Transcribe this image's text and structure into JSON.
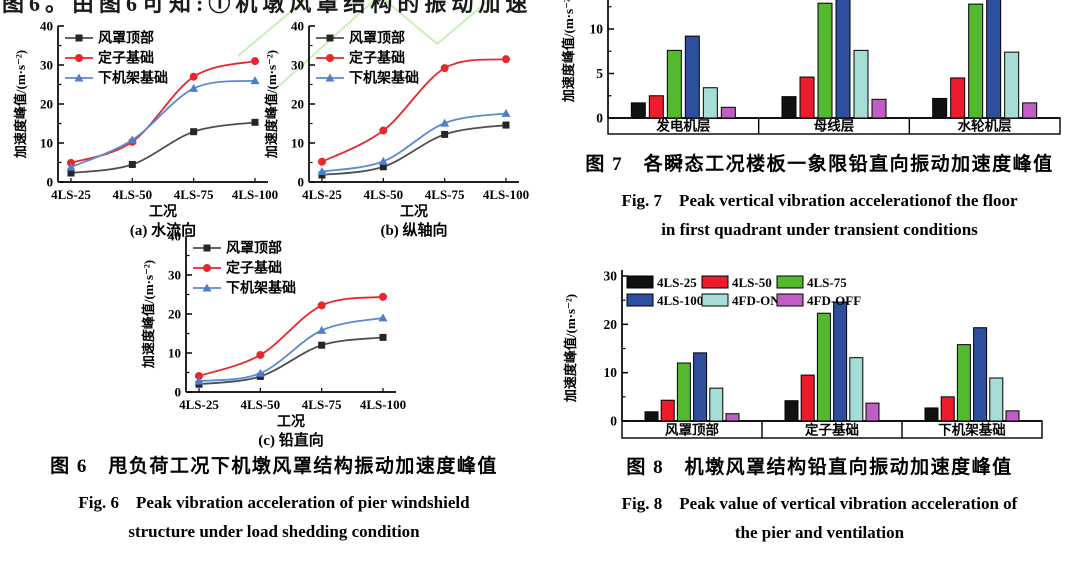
{
  "page_background": "#ffffff",
  "watermark_color": "#7ed957",
  "top_text": {
    "text": "图6。由图6可知:①机墩风罩结构的振动加速"
  },
  "figures": {
    "fig6": {
      "caption_zh": "图 6　甩负荷工况下机墩风罩结构振动加速度峰值",
      "caption_en1": "Fig. 6　Peak vibration acceleration of pier windshield",
      "caption_en2": "structure under load shedding condition"
    },
    "fig7": {
      "caption_zh": "图 7　各瞬态工况楼板一象限铅直向振动加速度峰值",
      "caption_en1": "Fig. 7　Peak vertical vibration accelerationof the floor",
      "caption_en2": "in first quadrant under transient conditions"
    },
    "fig8": {
      "caption_zh": "图 8　机墩风罩结构铅直向振动加速度峰值",
      "caption_en1": "Fig. 8　Peak value of vertical vibration acceleration of",
      "caption_en2": "the pier and ventilation"
    }
  },
  "chart_data": [
    {
      "id": "fig6a",
      "type": "line",
      "subcaption": "(a) 水流向",
      "xlabel": "工况",
      "ylabel": "加速度峰值/(m·s⁻²)",
      "ylim": [
        0,
        40
      ],
      "yticks": [
        0,
        10,
        20,
        30,
        40
      ],
      "yminor": [
        5,
        15,
        25,
        35
      ],
      "categories": [
        "4LS-25",
        "4LS-50",
        "4LS-75",
        "4LS-100"
      ],
      "legend_position": "top-left-inside",
      "series": [
        {
          "name": "风罩顶部",
          "color": "#4e4e4e",
          "marker": "square",
          "marker_color": "#262626",
          "values": [
            2.3,
            4.5,
            12.9,
            15.3
          ]
        },
        {
          "name": "定子基础",
          "color": "#e8272d",
          "marker": "circle",
          "marker_color": "#e8272d",
          "values": [
            4.9,
            10.3,
            27.0,
            31.0
          ]
        },
        {
          "name": "下机架基础",
          "color": "#5b8ad2",
          "marker": "triangle",
          "marker_color": "#4f7fc9",
          "values": [
            3.8,
            10.8,
            24.0,
            26.0
          ]
        }
      ]
    },
    {
      "id": "fig6b",
      "type": "line",
      "subcaption": "(b) 纵轴向",
      "xlabel": "工况",
      "ylabel": "加速度峰值/(m·s⁻²)",
      "ylim": [
        0,
        40
      ],
      "yticks": [
        0,
        10,
        20,
        30,
        40
      ],
      "yminor": [
        5,
        15,
        25,
        35
      ],
      "categories": [
        "4LS-25",
        "4LS-50",
        "4LS-75",
        "4LS-100"
      ],
      "legend_position": "top-left-inside",
      "series": [
        {
          "name": "风罩顶部",
          "color": "#4e4e4e",
          "marker": "square",
          "marker_color": "#262626",
          "values": [
            1.8,
            3.9,
            12.2,
            14.6
          ]
        },
        {
          "name": "定子基础",
          "color": "#e8272d",
          "marker": "circle",
          "marker_color": "#e8272d",
          "values": [
            5.2,
            13.2,
            29.2,
            31.5
          ]
        },
        {
          "name": "下机架基础",
          "color": "#5b8ad2",
          "marker": "triangle",
          "marker_color": "#4f7fc9",
          "values": [
            2.7,
            5.3,
            15.1,
            17.6
          ]
        }
      ]
    },
    {
      "id": "fig6c",
      "type": "line",
      "subcaption": "(c) 铅直向",
      "xlabel": "工况",
      "ylabel": "加速度峰值/(m·s⁻²)",
      "ylim": [
        0,
        40
      ],
      "yticks": [
        0,
        10,
        20,
        30,
        40
      ],
      "yminor": [
        5,
        15,
        25,
        35
      ],
      "categories": [
        "4LS-25",
        "4LS-50",
        "4LS-75",
        "4LS-100"
      ],
      "legend_position": "top-left-inside",
      "series": [
        {
          "name": "风罩顶部",
          "color": "#4e4e4e",
          "marker": "square",
          "marker_color": "#262626",
          "values": [
            2.0,
            4.0,
            12.0,
            14.0
          ]
        },
        {
          "name": "定子基础",
          "color": "#e8272d",
          "marker": "circle",
          "marker_color": "#e8272d",
          "values": [
            4.1,
            9.5,
            22.2,
            24.4
          ]
        },
        {
          "name": "下机架基础",
          "color": "#5b8ad2",
          "marker": "triangle",
          "marker_color": "#4f7fc9",
          "values": [
            2.8,
            4.8,
            15.8,
            19.0
          ]
        }
      ]
    },
    {
      "id": "fig7",
      "type": "bar",
      "ylabel": "加速度峰值/(m·s⁻²)",
      "ylim": [
        0,
        13.2
      ],
      "yticks": [
        0,
        5,
        10
      ],
      "yminor": [
        2.5,
        7.5,
        12.5
      ],
      "clipped_top": true,
      "legend_visible": false,
      "categories": [
        "发电机层",
        "母线层",
        "水轮机层"
      ],
      "series": [
        {
          "name": "4LS-25",
          "color": "#111111",
          "values": [
            1.7,
            2.4,
            2.2
          ]
        },
        {
          "name": "4LS-50",
          "color": "#ec1c2c",
          "values": [
            2.5,
            4.6,
            4.5
          ]
        },
        {
          "name": "4LS-75",
          "color": "#54b92f",
          "values": [
            7.6,
            12.9,
            12.8
          ]
        },
        {
          "name": "4LS-100",
          "color": "#2e4e9e",
          "values": [
            9.2,
            14.5,
            14.2
          ]
        },
        {
          "name": "4FD-ON",
          "color": "#a6ded7",
          "values": [
            3.4,
            7.6,
            7.4
          ]
        },
        {
          "name": "4FD-OFF",
          "color": "#bf5fc4",
          "values": [
            1.2,
            2.1,
            1.7
          ]
        }
      ]
    },
    {
      "id": "fig8",
      "type": "bar",
      "ylabel": "加速度峰值/(m·s⁻²)",
      "ylim": [
        0,
        30
      ],
      "yticks": [
        0,
        10,
        20,
        30
      ],
      "yminor": [
        5,
        15,
        25
      ],
      "clipped_top": false,
      "legend_visible": true,
      "legend_rows": [
        [
          "4LS-25",
          "4LS-50",
          "4LS-75"
        ],
        [
          "4LS-100",
          "4FD-ON",
          "4FD-OFF"
        ]
      ],
      "categories": [
        "风罩顶部",
        "定子基础",
        "下机架基础"
      ],
      "series": [
        {
          "name": "4LS-25",
          "color": "#111111",
          "values": [
            1.9,
            4.2,
            2.7
          ]
        },
        {
          "name": "4LS-50",
          "color": "#ec1c2c",
          "values": [
            4.3,
            9.5,
            5.0
          ]
        },
        {
          "name": "4LS-75",
          "color": "#54b92f",
          "values": [
            12.0,
            22.3,
            15.8
          ]
        },
        {
          "name": "4LS-100",
          "color": "#2e4e9e",
          "values": [
            14.1,
            24.6,
            19.3
          ]
        },
        {
          "name": "4FD-ON",
          "color": "#a6ded7",
          "values": [
            6.8,
            13.1,
            8.9
          ]
        },
        {
          "name": "4FD-OFF",
          "color": "#bf5fc4",
          "values": [
            1.5,
            3.7,
            2.1
          ]
        }
      ]
    }
  ]
}
